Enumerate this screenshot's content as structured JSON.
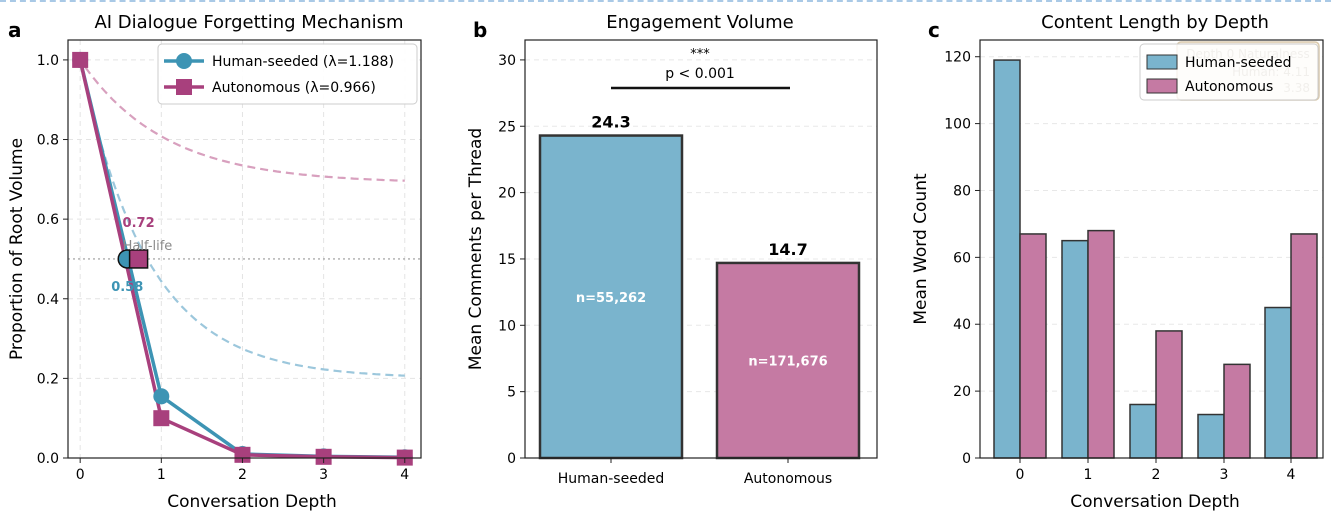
{
  "chart_data": [
    {
      "panel_letter": "a",
      "type": "line",
      "title": "AI Dialogue Forgetting Mechanism",
      "xlabel": "Conversation Depth",
      "ylabel": "Proportion of Root Volume",
      "xlim": [
        -0.15,
        4.2
      ],
      "ylim": [
        0,
        1.05
      ],
      "xticks": [
        "0",
        "1",
        "2",
        "3",
        "4"
      ],
      "yticks": [
        "0.0",
        "0.2",
        "0.4",
        "0.6",
        "0.8",
        "1.0"
      ],
      "grid": true,
      "legend_position": "top-right",
      "series": [
        {
          "name": "Human-seeded (λ=1.188)",
          "marker": "circle",
          "color": "#3d94b4",
          "x": [
            0,
            1,
            2,
            3,
            4
          ],
          "values": [
            1.0,
            0.155,
            0.01,
            0.004,
            0.002
          ]
        },
        {
          "name": "Autonomous (λ=0.966)",
          "marker": "square",
          "color": "#a8407d",
          "x": [
            0,
            1,
            2,
            3,
            4
          ],
          "values": [
            1.0,
            0.1,
            0.008,
            0.003,
            0.001
          ]
        }
      ],
      "fit_curves": [
        {
          "color": "#9cc7dc",
          "asymptote": 0.2,
          "rate": 1.188
        },
        {
          "color": "#d8a0be",
          "asymptote": 0.69,
          "rate": 0.966
        }
      ],
      "half_life": {
        "y": 0.5,
        "label": "Half-life",
        "human_x": 0.58,
        "human_label": "0.58",
        "auto_x": 0.72,
        "auto_label": "0.72"
      }
    },
    {
      "panel_letter": "b",
      "type": "bar",
      "title": "Engagement Volume",
      "ylabel": "Mean Comments per Thread",
      "categories": [
        "Human-seeded",
        "Autonomous"
      ],
      "values": [
        24.3,
        14.7
      ],
      "value_labels": [
        "24.3",
        "14.7"
      ],
      "n_labels": [
        "n=55,262",
        "n=171,676"
      ],
      "colors": [
        "#7ab4cd",
        "#c57aa3"
      ],
      "ylim": [
        0,
        31.5
      ],
      "yticks": [
        "0",
        "5",
        "10",
        "15",
        "20",
        "25",
        "30"
      ],
      "grid": true,
      "significance": {
        "stars": "***",
        "text": "p < 0.001"
      }
    },
    {
      "panel_letter": "c",
      "type": "bar",
      "title": "Content Length by Depth",
      "xlabel": "Conversation Depth",
      "ylabel": "Mean Word Count",
      "categories": [
        "0",
        "1",
        "2",
        "3",
        "4"
      ],
      "ylim": [
        0,
        125
      ],
      "yticks": [
        "0",
        "20",
        "40",
        "60",
        "80",
        "100",
        "120"
      ],
      "grid": true,
      "legend_position": "top-right",
      "series": [
        {
          "name": "Human-seeded",
          "color": "#7ab4cd",
          "values": [
            119,
            65,
            16,
            13,
            45
          ]
        },
        {
          "name": "Autonomous",
          "color": "#c57aa3",
          "values": [
            67,
            68,
            38,
            28,
            67
          ]
        }
      ],
      "annotation_box": {
        "line1": "Depth 0 Naturalness",
        "line2": "Human: 4.11",
        "line3": "3.38"
      }
    }
  ]
}
